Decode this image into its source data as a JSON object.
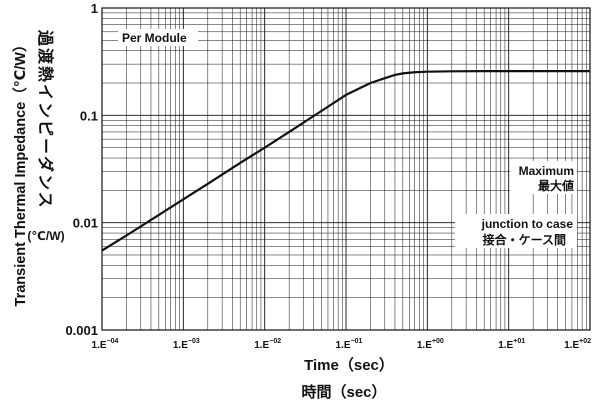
{
  "chart_data": {
    "type": "line",
    "title": "",
    "xscale": "log",
    "yscale": "log",
    "xlim": [
      0.0001,
      100
    ],
    "ylim": [
      0.001,
      1
    ],
    "xlabel": "Time（sec）",
    "xlabel_jp": "時間（sec）",
    "ylabel": "Transient Thermal Impedance（℃/W）",
    "ylabel_jp": "過渡熱インピーダンス",
    "ylabel_unit_jp": "(℃/W)",
    "x_tick_labels": [
      {
        "base": "1.E",
        "exp": "−04"
      },
      {
        "base": "1.E",
        "exp": "−03"
      },
      {
        "base": "1.E",
        "exp": "−02"
      },
      {
        "base": "1.E",
        "exp": "−01"
      },
      {
        "base": "1.E",
        "exp": "+00"
      },
      {
        "base": "1.E",
        "exp": "+01"
      },
      {
        "base": "1.E",
        "exp": "+02"
      }
    ],
    "y_tick_labels": [
      "0.001",
      "0.01",
      "0.1",
      "1"
    ],
    "grid": true,
    "annotations": {
      "per_module": "Per Module",
      "maximum_en": "Maximum",
      "maximum_jp": "最大値",
      "junction_en": "junction to case",
      "junction_jp": "接合・ケース間"
    },
    "series": [
      {
        "x": [
          0.0001,
          0.0002,
          0.0005,
          0.001,
          0.002,
          0.005,
          0.01,
          0.02,
          0.05,
          0.1,
          0.2,
          0.3,
          0.4,
          0.5,
          0.7,
          1,
          2,
          5,
          10,
          100
        ],
        "y": [
          0.0055,
          0.0076,
          0.0118,
          0.0165,
          0.023,
          0.036,
          0.05,
          0.07,
          0.11,
          0.155,
          0.2,
          0.222,
          0.238,
          0.246,
          0.252,
          0.255,
          0.257,
          0.258,
          0.258,
          0.258
        ]
      }
    ]
  }
}
